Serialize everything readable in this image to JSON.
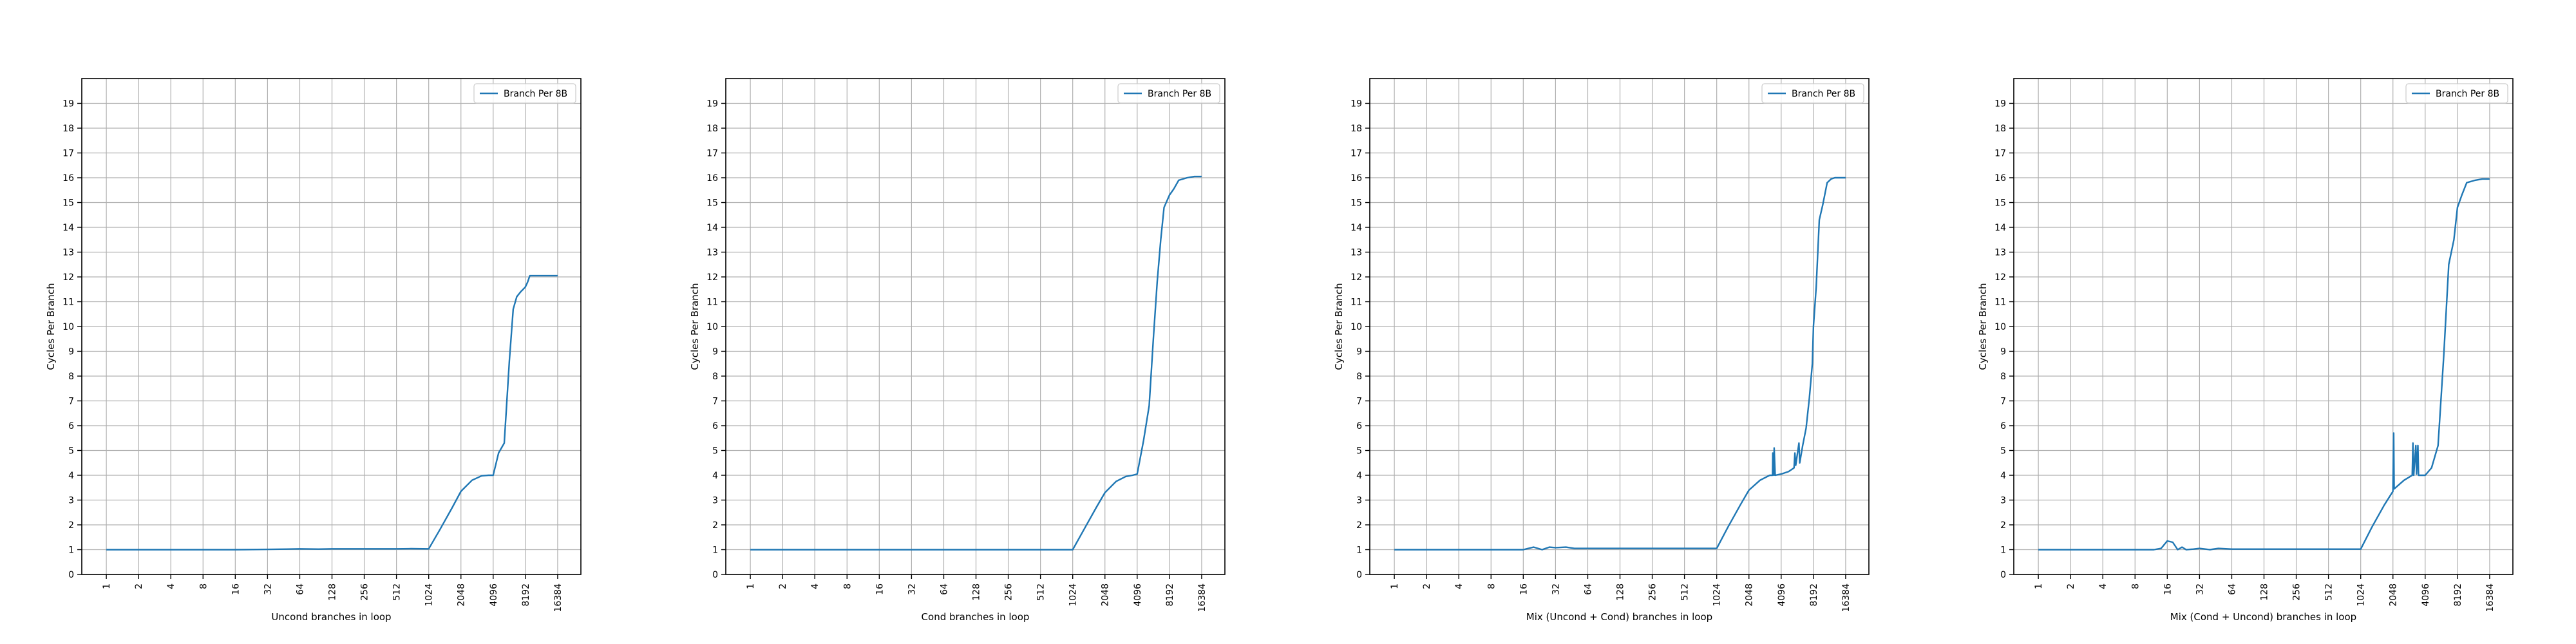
{
  "chart_data": [
    {
      "type": "line",
      "xscale": "log2",
      "xlabel": "Uncond branches in loop",
      "ylabel": "Cycles Per Branch",
      "xticks": [
        1,
        2,
        4,
        8,
        16,
        32,
        64,
        128,
        256,
        512,
        1024,
        2048,
        4096,
        8192,
        16384
      ],
      "xtick_labels": [
        "1",
        "2",
        "4",
        "8",
        "16",
        "32",
        "64",
        "128",
        "256",
        "512",
        "1024",
        "2048",
        "4096",
        "8192",
        "16384"
      ],
      "xlim": [
        0.59,
        27000
      ],
      "yticks": [
        0,
        1,
        2,
        3,
        4,
        5,
        6,
        7,
        8,
        9,
        10,
        11,
        12,
        13,
        14,
        15,
        16,
        17,
        18,
        19
      ],
      "ylim": [
        0,
        20
      ],
      "grid": true,
      "legend_position": "top-right",
      "color": "#1f77b4",
      "series": [
        {
          "name": "Branch Per 8B",
          "x": [
            1,
            2,
            4,
            8,
            16,
            32,
            48,
            64,
            96,
            128,
            256,
            512,
            700,
            1024,
            1300,
            1700,
            2048,
            2600,
            3200,
            3700,
            4096,
            4600,
            5200,
            5800,
            6300,
            6800,
            7400,
            8000,
            8192,
            8600,
            9000,
            10000,
            12000,
            14000,
            16384
          ],
          "y": [
            1.0,
            1.0,
            1.0,
            1.0,
            1.0,
            1.01,
            1.02,
            1.03,
            1.02,
            1.03,
            1.03,
            1.03,
            1.04,
            1.03,
            1.8,
            2.7,
            3.35,
            3.8,
            3.98,
            4.0,
            4.0,
            4.9,
            5.3,
            8.6,
            10.7,
            11.2,
            11.4,
            11.55,
            11.6,
            11.8,
            12.05,
            12.05,
            12.05,
            12.05,
            12.05
          ]
        }
      ]
    },
    {
      "type": "line",
      "xscale": "log2",
      "xlabel": "Cond branches in loop",
      "ylabel": "Cycles Per Branch",
      "xticks": [
        1,
        2,
        4,
        8,
        16,
        32,
        64,
        128,
        256,
        512,
        1024,
        2048,
        4096,
        8192,
        16384
      ],
      "xtick_labels": [
        "1",
        "2",
        "4",
        "8",
        "16",
        "32",
        "64",
        "128",
        "256",
        "512",
        "1024",
        "2048",
        "4096",
        "8192",
        "16384"
      ],
      "xlim": [
        0.59,
        27000
      ],
      "yticks": [
        0,
        1,
        2,
        3,
        4,
        5,
        6,
        7,
        8,
        9,
        10,
        11,
        12,
        13,
        14,
        15,
        16,
        17,
        18,
        19
      ],
      "ylim": [
        0,
        20
      ],
      "grid": true,
      "legend_position": "top-right",
      "color": "#1f77b4",
      "series": [
        {
          "name": "Branch Per 8B",
          "x": [
            1,
            2,
            4,
            8,
            16,
            32,
            64,
            128,
            256,
            512,
            1024,
            1300,
            1700,
            2048,
            2600,
            3200,
            3700,
            4096,
            4700,
            5300,
            5800,
            6300,
            6800,
            7300,
            8192,
            9000,
            10000,
            12000,
            14000,
            16384
          ],
          "y": [
            1.0,
            1.0,
            1.0,
            1.0,
            1.0,
            1.0,
            1.0,
            1.0,
            1.0,
            1.0,
            1.0,
            1.8,
            2.7,
            3.3,
            3.75,
            3.95,
            4.0,
            4.05,
            5.4,
            6.8,
            9.5,
            11.8,
            13.5,
            14.8,
            15.3,
            15.55,
            15.9,
            16.0,
            16.05,
            16.05
          ]
        }
      ]
    },
    {
      "type": "line",
      "xscale": "log2",
      "xlabel": "Mix (Uncond + Cond) branches in loop",
      "ylabel": "Cycles Per Branch",
      "xticks": [
        1,
        2,
        4,
        8,
        16,
        32,
        64,
        128,
        256,
        512,
        1024,
        2048,
        4096,
        8192,
        16384
      ],
      "xtick_labels": [
        "1",
        "2",
        "4",
        "8",
        "16",
        "32",
        "64",
        "128",
        "256",
        "512",
        "1024",
        "2048",
        "4096",
        "8192",
        "16384"
      ],
      "xlim": [
        0.59,
        27000
      ],
      "yticks": [
        0,
        1,
        2,
        3,
        4,
        5,
        6,
        7,
        8,
        9,
        10,
        11,
        12,
        13,
        14,
        15,
        16,
        17,
        18,
        19
      ],
      "ylim": [
        0,
        20
      ],
      "grid": true,
      "legend_position": "top-right",
      "color": "#1f77b4",
      "series": [
        {
          "name": "Branch Per 8B",
          "x": [
            1,
            2,
            4,
            8,
            16,
            20,
            24,
            28,
            32,
            40,
            48,
            64,
            128,
            256,
            512,
            1024,
            1300,
            1700,
            2048,
            2600,
            3200,
            3400,
            3420,
            3500,
            3520,
            3600,
            4096,
            4800,
            5400,
            5500,
            5600,
            6000,
            6100,
            6500,
            7000,
            7500,
            8000,
            8192,
            8700,
            9300,
            10000,
            11000,
            12000,
            13000,
            14000,
            16384
          ],
          "y": [
            1.0,
            1.0,
            1.0,
            1.0,
            1.0,
            1.1,
            1.0,
            1.1,
            1.08,
            1.1,
            1.05,
            1.05,
            1.05,
            1.05,
            1.05,
            1.05,
            1.9,
            2.8,
            3.4,
            3.8,
            4.0,
            4.0,
            4.9,
            4.0,
            5.1,
            4.0,
            4.05,
            4.15,
            4.3,
            4.9,
            4.4,
            5.3,
            4.5,
            5.2,
            5.9,
            7.1,
            8.5,
            10.0,
            11.6,
            14.3,
            14.9,
            15.8,
            15.95,
            16.0,
            16.0,
            16.0
          ]
        }
      ]
    },
    {
      "type": "line",
      "xscale": "log2",
      "xlabel": "Mix (Cond + Uncond) branches in loop",
      "ylabel": "Cycles Per Branch",
      "xticks": [
        1,
        2,
        4,
        8,
        16,
        32,
        64,
        128,
        256,
        512,
        1024,
        2048,
        4096,
        8192,
        16384
      ],
      "xtick_labels": [
        "1",
        "2",
        "4",
        "8",
        "16",
        "32",
        "64",
        "128",
        "256",
        "512",
        "1024",
        "2048",
        "4096",
        "8192",
        "16384"
      ],
      "xlim": [
        0.59,
        27000
      ],
      "yticks": [
        0,
        1,
        2,
        3,
        4,
        5,
        6,
        7,
        8,
        9,
        10,
        11,
        12,
        13,
        14,
        15,
        16,
        17,
        18,
        19
      ],
      "ylim": [
        0,
        20
      ],
      "grid": true,
      "legend_position": "top-right",
      "color": "#1f77b4",
      "series": [
        {
          "name": "Branch Per 8B",
          "x": [
            1,
            2,
            4,
            8,
            12,
            14,
            16,
            18,
            20,
            22,
            24,
            28,
            32,
            40,
            48,
            64,
            128,
            256,
            512,
            1024,
            1300,
            1700,
            2048,
            2080,
            2100,
            2600,
            3100,
            3150,
            3200,
            3350,
            3400,
            3500,
            3550,
            3700,
            4096,
            4700,
            5400,
            6100,
            6800,
            7600,
            8192,
            9000,
            10000,
            12000,
            14000,
            16384
          ],
          "y": [
            1.0,
            1.0,
            1.0,
            1.0,
            1.0,
            1.05,
            1.35,
            1.3,
            1.0,
            1.1,
            1.0,
            1.02,
            1.05,
            1.0,
            1.05,
            1.02,
            1.02,
            1.02,
            1.02,
            1.02,
            1.9,
            2.8,
            3.35,
            5.7,
            3.45,
            3.8,
            4.0,
            5.3,
            4.0,
            5.2,
            4.05,
            5.2,
            4.0,
            4.0,
            4.0,
            4.3,
            5.2,
            8.8,
            12.5,
            13.5,
            14.8,
            15.3,
            15.8,
            15.9,
            15.95,
            15.95
          ]
        }
      ]
    }
  ]
}
